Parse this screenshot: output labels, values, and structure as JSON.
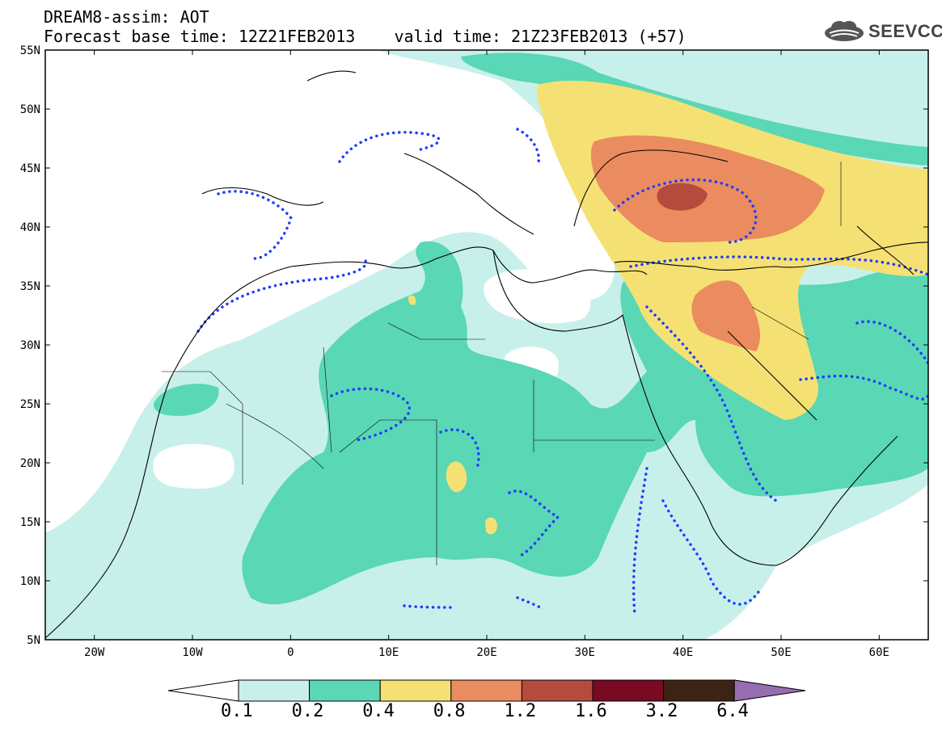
{
  "title": {
    "line1": "DREAM8-assim: AOT",
    "line2": "Forecast base time: 12Z21FEB2013    valid time: 21Z23FEB2013 (+57)"
  },
  "logo": {
    "text": "SEEVCCC",
    "icon": "cloud-icon"
  },
  "map": {
    "lon_range": [
      -25,
      65
    ],
    "lat_range": [
      5,
      55
    ],
    "lat_ticks": [
      "55N",
      "50N",
      "45N",
      "40N",
      "35N",
      "30N",
      "25N",
      "20N",
      "15N",
      "10N",
      "5N"
    ],
    "lon_ticks": [
      "20W",
      "10W",
      "0",
      "10E",
      "20E",
      "30E",
      "40E",
      "50E",
      "60E"
    ],
    "contour_color": "#1e3cff"
  },
  "colorbar": {
    "labels": [
      "0.1",
      "0.2",
      "0.4",
      "0.8",
      "1.2",
      "1.6",
      "3.2",
      "6.4"
    ],
    "colors": [
      "#c8f0eb",
      "#5ad7b4",
      "#f5e173",
      "#ea8c5f",
      "#b44b3c",
      "#780a23",
      "#3c2314",
      "#966eaf"
    ],
    "under_color": "#ffffff"
  }
}
